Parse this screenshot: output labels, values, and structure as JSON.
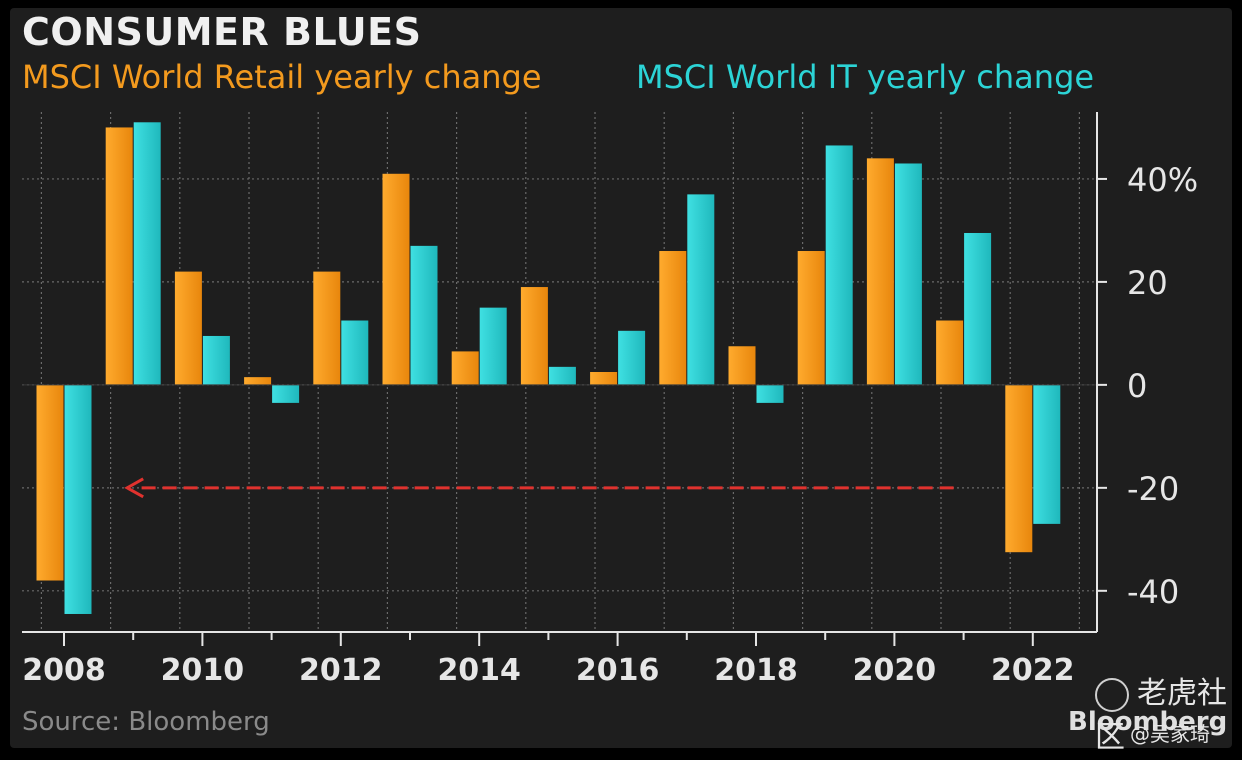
{
  "header": {
    "title": "CONSUMER BLUES"
  },
  "footer": {
    "source": "Source: Bloomberg",
    "brand": "Bloomberg"
  },
  "watermark": {
    "site": "老虎社区",
    "user": "@吴家琦"
  },
  "colors": {
    "background": "#1e1e1e",
    "retail": "#f39a1e",
    "it": "#2cd4d6",
    "grid": "#6a6a6a",
    "axis": "#e6e6e6",
    "arrow": "#e0322e"
  },
  "chart_data": {
    "type": "bar",
    "title": "CONSUMER BLUES",
    "x": [
      2008,
      2009,
      2010,
      2011,
      2012,
      2013,
      2014,
      2015,
      2016,
      2017,
      2018,
      2019,
      2020,
      2021,
      2022
    ],
    "series": [
      {
        "name": "MSCI World Retail yearly change",
        "values": [
          -38,
          50,
          22,
          1.5,
          22,
          41,
          6.5,
          19,
          2.5,
          26,
          7.5,
          26,
          44,
          12.5,
          -32.5
        ]
      },
      {
        "name": "MSCI World IT yearly change",
        "values": [
          -44.5,
          51,
          9.5,
          -3.5,
          12.5,
          27,
          15,
          3.5,
          10.5,
          37,
          -3.5,
          46.5,
          43,
          29.5,
          -27
        ]
      }
    ],
    "x_tick_labels": [
      "2008",
      "2010",
      "2012",
      "2014",
      "2016",
      "2018",
      "2020",
      "2022"
    ],
    "y_ticks": [
      40,
      20,
      0,
      -20,
      -40
    ],
    "y_tick_labels": [
      "40%",
      "20",
      "0",
      "-20",
      "-40"
    ],
    "ylim": [
      -48,
      53
    ],
    "xlabel": "",
    "ylabel": "",
    "grid": true,
    "legend_position": "top",
    "y_axis_position": "right",
    "annotations": [
      {
        "type": "dashed-arrow",
        "y": -20,
        "from_x": 2021,
        "to_x": 2009
      }
    ]
  }
}
